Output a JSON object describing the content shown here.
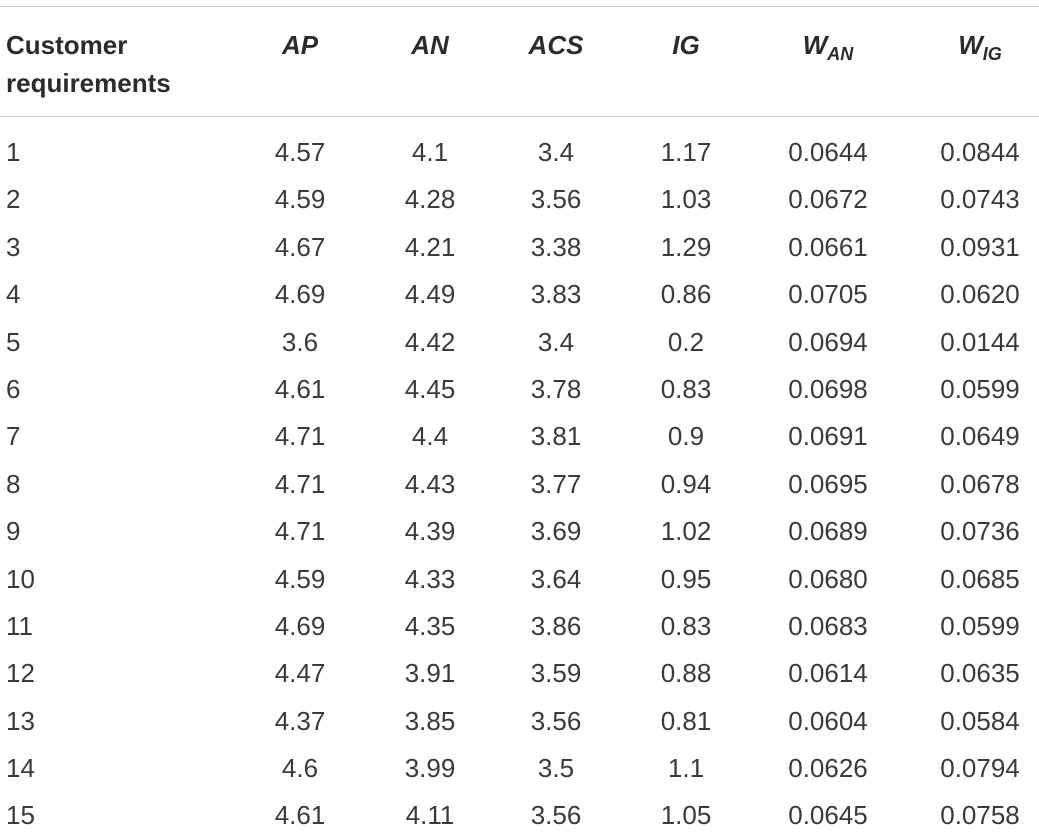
{
  "table": {
    "headers": {
      "requirement_line1": "Customer",
      "requirement_line2": "requirements",
      "ap": "AP",
      "an": "AN",
      "acs": "ACS",
      "ig": "IG",
      "w_an_base": "W",
      "w_an_sub": "AN",
      "w_ig_base": "W",
      "w_ig_sub": "IG"
    },
    "rows": [
      [
        "1",
        "4.57",
        "4.1",
        "3.4",
        "1.17",
        "0.0644",
        "0.0844"
      ],
      [
        "2",
        "4.59",
        "4.28",
        "3.56",
        "1.03",
        "0.0672",
        "0.0743"
      ],
      [
        "3",
        "4.67",
        "4.21",
        "3.38",
        "1.29",
        "0.0661",
        "0.0931"
      ],
      [
        "4",
        "4.69",
        "4.49",
        "3.83",
        "0.86",
        "0.0705",
        "0.0620"
      ],
      [
        "5",
        "3.6",
        "4.42",
        "3.4",
        "0.2",
        "0.0694",
        "0.0144"
      ],
      [
        "6",
        "4.61",
        "4.45",
        "3.78",
        "0.83",
        "0.0698",
        "0.0599"
      ],
      [
        "7",
        "4.71",
        "4.4",
        "3.81",
        "0.9",
        "0.0691",
        "0.0649"
      ],
      [
        "8",
        "4.71",
        "4.43",
        "3.77",
        "0.94",
        "0.0695",
        "0.0678"
      ],
      [
        "9",
        "4.71",
        "4.39",
        "3.69",
        "1.02",
        "0.0689",
        "0.0736"
      ],
      [
        "10",
        "4.59",
        "4.33",
        "3.64",
        "0.95",
        "0.0680",
        "0.0685"
      ],
      [
        "11",
        "4.69",
        "4.35",
        "3.86",
        "0.83",
        "0.0683",
        "0.0599"
      ],
      [
        "12",
        "4.47",
        "3.91",
        "3.59",
        "0.88",
        "0.0614",
        "0.0635"
      ],
      [
        "13",
        "4.37",
        "3.85",
        "3.56",
        "0.81",
        "0.0604",
        "0.0584"
      ],
      [
        "14",
        "4.6",
        "3.99",
        "3.5",
        "1.1",
        "0.0626",
        "0.0794"
      ],
      [
        "15",
        "4.61",
        "4.11",
        "3.56",
        "1.05",
        "0.0645",
        "0.0758"
      ]
    ]
  },
  "colors": {
    "text": "#2b2b2b",
    "rule": "#c9c9c9",
    "background": "#ffffff"
  }
}
